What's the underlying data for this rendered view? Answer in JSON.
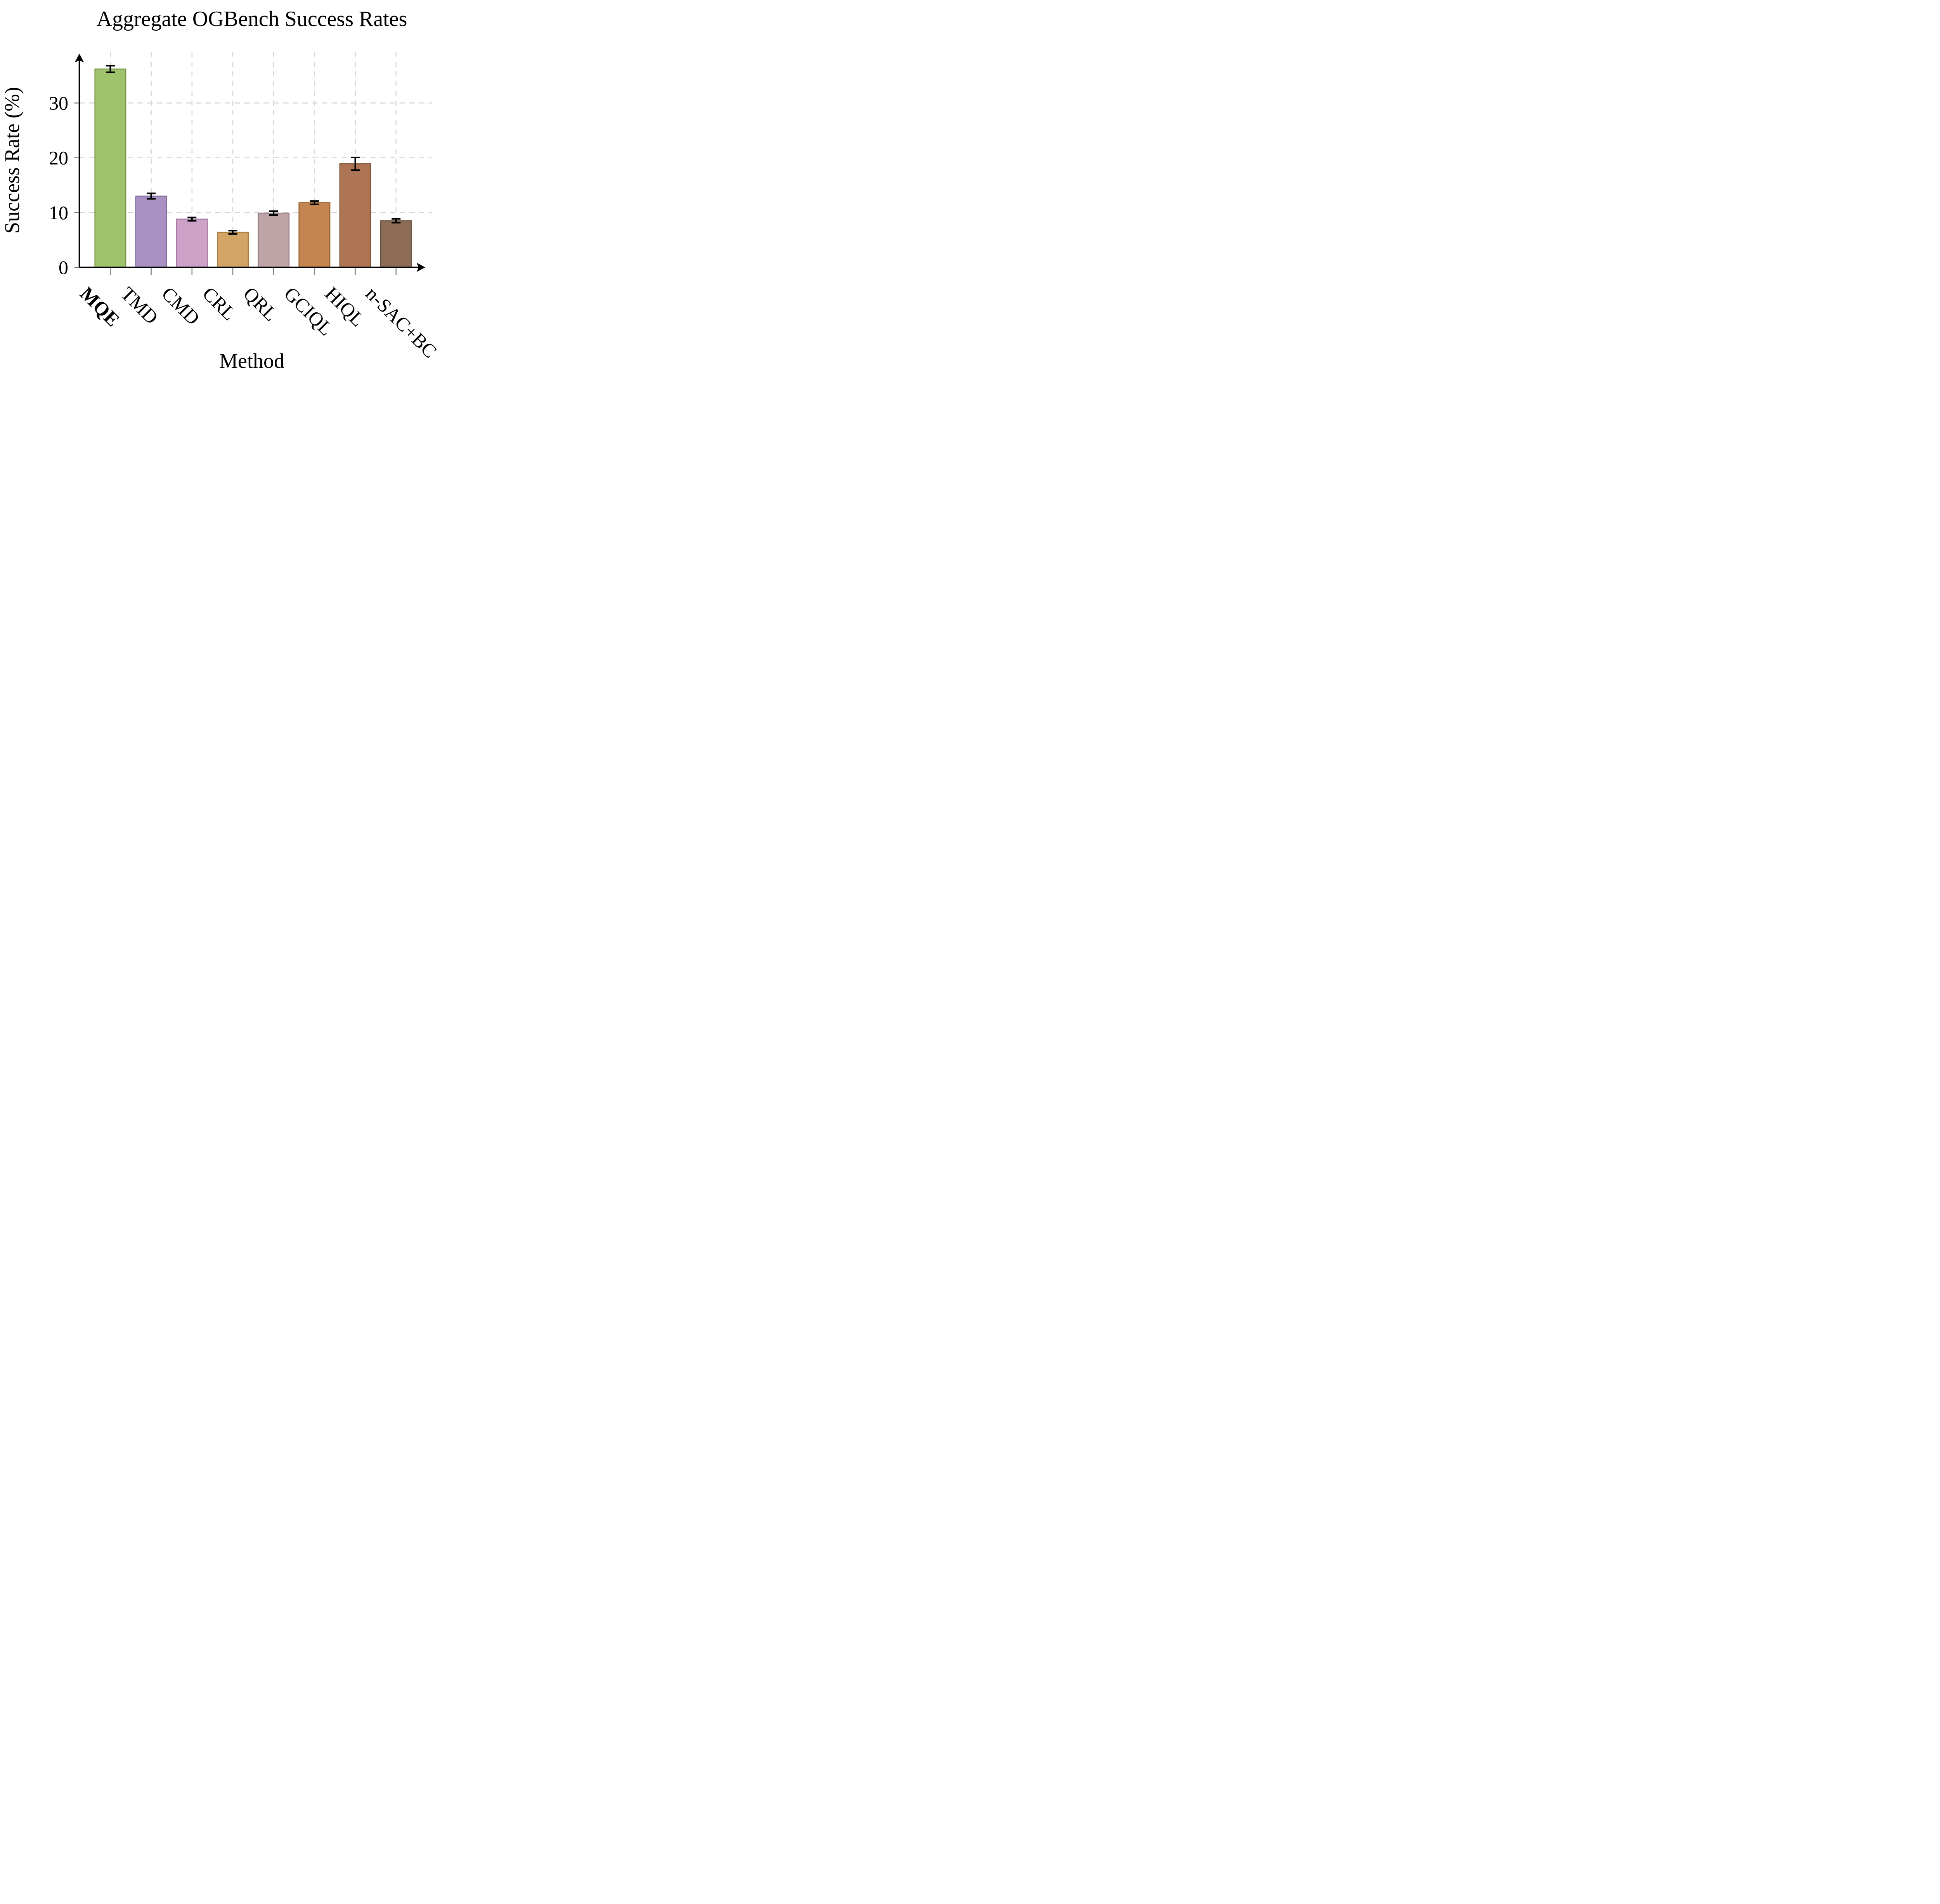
{
  "chart_data": {
    "type": "bar",
    "title": "Aggregate OGBench Success Rates",
    "xlabel": "Method",
    "ylabel": "Success Rate (%)",
    "categories": [
      "MQE",
      "TMD",
      "CMD",
      "CRL",
      "QRL",
      "GCIQL",
      "HIQL",
      "n-SAC+BC"
    ],
    "values": [
      36.2,
      13.0,
      8.8,
      6.4,
      9.9,
      11.8,
      18.9,
      8.5
    ],
    "errors": [
      0.6,
      0.5,
      0.3,
      0.3,
      0.35,
      0.3,
      1.15,
      0.35
    ],
    "bold_categories": [
      "MQE"
    ],
    "bar_fill_colors": [
      "#9fc36c",
      "#a992c1",
      "#cda2c9",
      "#d2a465",
      "#bea3a7",
      "#c48550",
      "#ad7553",
      "#8d6c57"
    ],
    "bar_edge_colors": [
      "#78984a",
      "#7e6a9e",
      "#a87aa6",
      "#aa7d3c",
      "#97787d",
      "#9a6330",
      "#7f5336",
      "#665042"
    ],
    "error_bar_color": "#000000",
    "axis_color": "#000000",
    "tick_color": "#808080",
    "grid_color": "#d5d5d5",
    "grid": "dashed",
    "yticks": [
      0,
      10,
      20,
      30
    ],
    "ylim": [
      0,
      38
    ],
    "xtick_rotation_deg": 45,
    "legend": "none"
  }
}
